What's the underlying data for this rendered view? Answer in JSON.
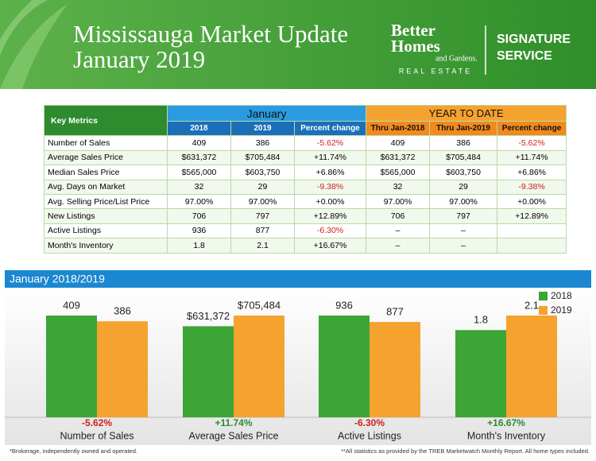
{
  "header": {
    "title_lines": [
      "Mississauga Market Update",
      "January 2019"
    ],
    "logo_lines": [
      "Better",
      "Homes",
      "and Gardens."
    ],
    "logo_sub": "REAL ESTATE",
    "service_lines": [
      "SIGNATURE",
      "SERVICE"
    ]
  },
  "table": {
    "corner": "Key Metrics",
    "groups": [
      "January",
      "YEAR TO DATE"
    ],
    "columns": [
      "2018",
      "2019",
      "Percent change",
      "Thru Jan-2018",
      "Thru Jan-2019",
      "Percent change"
    ],
    "rows": [
      [
        "Number of Sales",
        "409",
        "386",
        "-5.62%",
        "409",
        "386",
        "-5.62%"
      ],
      [
        "Average Sales Price",
        "$631,372",
        "$705,484",
        "+11.74%",
        "$631,372",
        "$705,484",
        "+11.74%"
      ],
      [
        "Median Sales Price",
        "$565,000",
        "$603,750",
        "+6.86%",
        "$565,000",
        "$603,750",
        "+6.86%"
      ],
      [
        "Avg. Days on Market",
        "32",
        "29",
        "-9.38%",
        "32",
        "29",
        "-9.38%"
      ],
      [
        "Avg. Selling Price/List Price",
        "97.00%",
        "97.00%",
        "+0.00%",
        "97.00%",
        "97.00%",
        "+0.00%"
      ],
      [
        "New Listings",
        "706",
        "797",
        "+12.89%",
        "706",
        "797",
        "+12.89%"
      ],
      [
        "Active Listings",
        "936",
        "877",
        "-6.30%",
        "–",
        "–"
      ],
      [
        "Month's Inventory",
        "1.8",
        "2.1",
        "+16.67%",
        "–",
        "–"
      ]
    ]
  },
  "chart_data": {
    "type": "bar",
    "title": "January 2018/2019",
    "categories": [
      "Number of Sales",
      "Average Sales Price",
      "Active Listings",
      "Month's Inventory"
    ],
    "series": [
      {
        "name": "2018",
        "color": "#3ca535",
        "values": [
          409,
          631372,
          936,
          1.8
        ],
        "value_labels": [
          "409",
          "$631,372",
          "936",
          "1.8"
        ]
      },
      {
        "name": "2019",
        "color": "#f5a22f",
        "values": [
          386,
          705484,
          877,
          2.1
        ],
        "value_labels": [
          "386",
          "$705,484",
          "877",
          "2.1"
        ]
      }
    ],
    "changes": [
      -5.62,
      11.74,
      -6.3,
      16.67
    ],
    "change_labels": [
      "-5.62%",
      "+11.74%",
      "-6.30%",
      "+16.67%"
    ]
  },
  "footer": {
    "left": "*Brokerage, independently owned and operated.",
    "right": "**All statistics as provided by the TREB Marketwatch Monthly Report. All home types included."
  }
}
